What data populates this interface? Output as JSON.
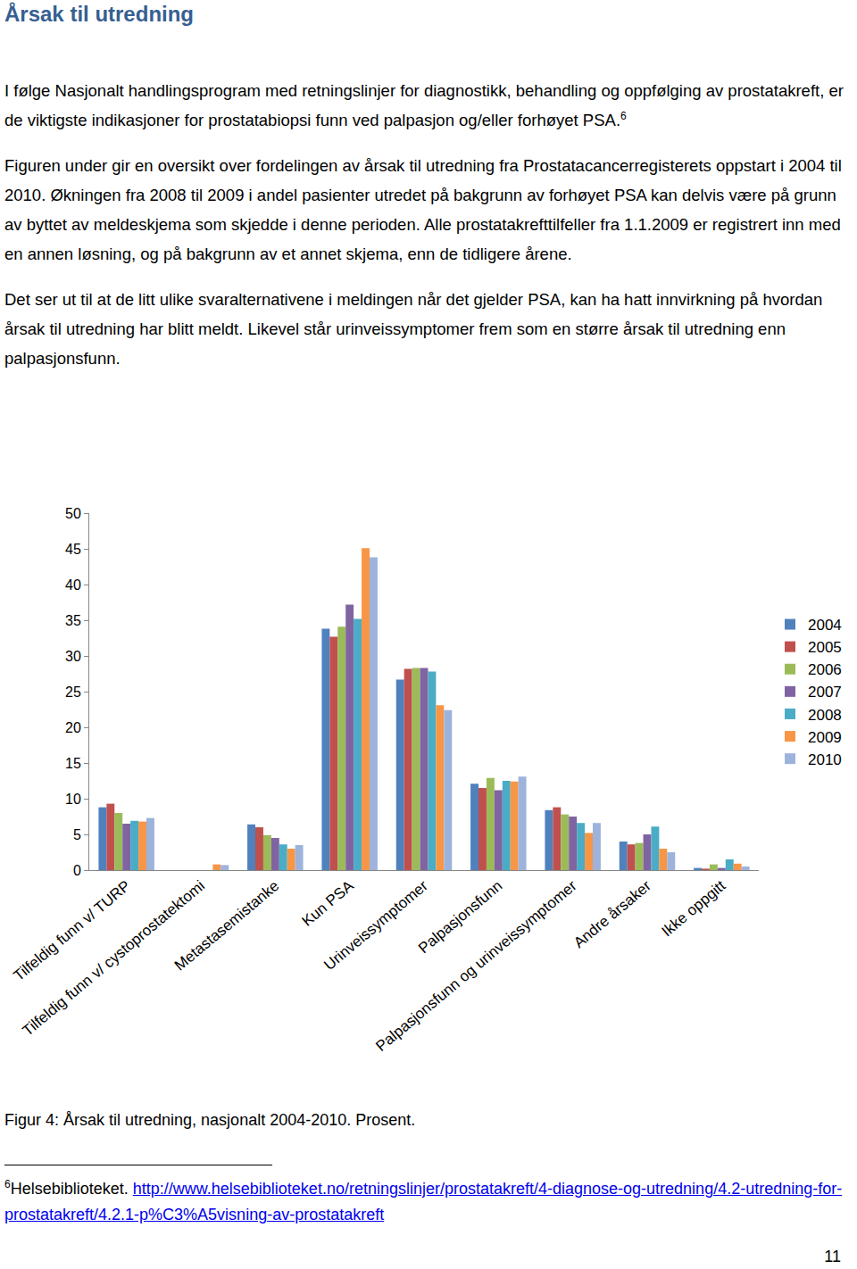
{
  "heading": "Årsak til utredning",
  "paragraphs": [
    {
      "text": "I følge Nasjonalt handlingsprogram med retningslinjer for diagnostikk, behandling og oppfølging av prostatakreft, er de viktigste indikasjoner for prostatabiopsi funn ved palpasjon og/eller forhøyet PSA.",
      "footnote_ref": "6"
    },
    {
      "text": "Figuren under gir en oversikt over fordelingen av årsak til utredning fra Prostatacancerregisterets oppstart i 2004 til 2010. Økningen fra 2008 til 2009 i andel pasienter utredet på bakgrunn av forhøyet PSA kan delvis være på grunn av byttet av meldeskjema som skjedde i denne perioden. Alle prostatakrefttilfeller fra 1.1.2009 er registrert inn med en annen løsning, og på bakgrunn av et annet skjema, enn de tidligere årene."
    },
    {
      "text": "Det ser ut til at de litt ulike svaralternativene i meldingen når det gjelder PSA, kan ha hatt innvirkning på hvordan årsak til utredning har blitt meldt. Likevel står urinveissymptomer frem som en større årsak til utredning enn palpasjonsfunn."
    }
  ],
  "chart_data": {
    "type": "bar",
    "categories": [
      "Tilfeldig funn v/ TURP",
      "Tilfeldig funn v/ cystoprostatektomi",
      "Metastasemistanke",
      "Kun PSA",
      "Urinveissymptomer",
      "Palpasjonsfunn",
      "Palpasjonsfunn og urinveissymptomer",
      "Andre årsaker",
      "Ikke oppgitt"
    ],
    "series": [
      {
        "name": "2004",
        "color": "#4F81BD",
        "values": [
          8.8,
          0,
          6.4,
          33.8,
          26.7,
          12.1,
          8.4,
          4.0,
          0.3
        ]
      },
      {
        "name": "2005",
        "color": "#C0504D",
        "values": [
          9.3,
          0,
          6.0,
          32.7,
          28.2,
          11.5,
          8.8,
          3.6,
          0.2
        ]
      },
      {
        "name": "2006",
        "color": "#9BBB59",
        "values": [
          8.0,
          0,
          4.9,
          34.1,
          28.3,
          12.9,
          7.8,
          3.8,
          0.8
        ]
      },
      {
        "name": "2007",
        "color": "#8064A2",
        "values": [
          6.5,
          0,
          4.5,
          37.2,
          28.3,
          11.2,
          7.5,
          5.0,
          0.3
        ]
      },
      {
        "name": "2008",
        "color": "#4BACC6",
        "values": [
          6.9,
          0,
          3.6,
          35.2,
          27.8,
          12.5,
          6.6,
          6.1,
          1.5
        ]
      },
      {
        "name": "2009",
        "color": "#F79646",
        "values": [
          6.8,
          0.8,
          3.0,
          45.1,
          23.1,
          12.4,
          5.2,
          3.0,
          0.9
        ]
      },
      {
        "name": "2010",
        "color": "#9DB3DB",
        "values": [
          7.3,
          0.7,
          3.5,
          43.8,
          22.4,
          13.1,
          6.6,
          2.5,
          0.5
        ]
      }
    ],
    "ylim": [
      0,
      50
    ],
    "yticks": [
      0,
      5,
      10,
      15,
      20,
      25,
      30,
      35,
      40,
      45,
      50
    ],
    "grid": false,
    "legend": "right"
  },
  "caption": "Figur 4: Årsak til utredning, nasjonalt 2004-2010. Prosent.",
  "footnote": {
    "marker": "6",
    "text": "Helsebiblioteket. ",
    "link": "http://www.helsebiblioteket.no/retningslinjer/prostatakreft/4-diagnose-og-utredning/4.2-utredning-for-prostatakreft/4.2.1-p%C3%A5visning-av-prostatakreft"
  },
  "page_number": 11
}
